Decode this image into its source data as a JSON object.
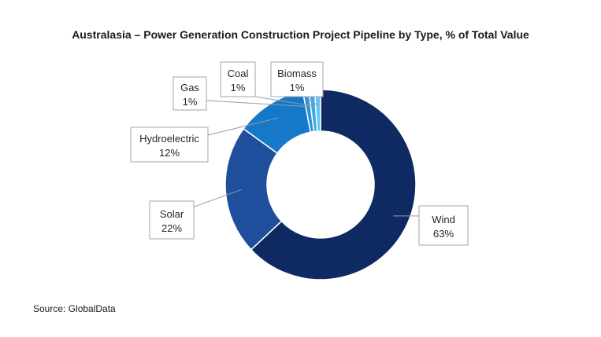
{
  "chart_data": {
    "type": "pie",
    "title": "Australasia – Power Generation Construction Project Pipeline by Type, % of Total Value",
    "labels": [
      "Wind",
      "Solar",
      "Hydroelectric",
      "Gas",
      "Coal",
      "Biomass"
    ],
    "values": [
      63,
      22,
      12,
      1,
      1,
      1
    ],
    "display_values": [
      "63%",
      "22%",
      "12%",
      "1%",
      "1%",
      "1%"
    ],
    "colors": [
      "#0f2a63",
      "#1f4f9c",
      "#1578c8",
      "#2d93d8",
      "#3fa9e6",
      "#6cc3f0"
    ],
    "donut": true,
    "legend": "none"
  },
  "source": "Source: GlobalData"
}
